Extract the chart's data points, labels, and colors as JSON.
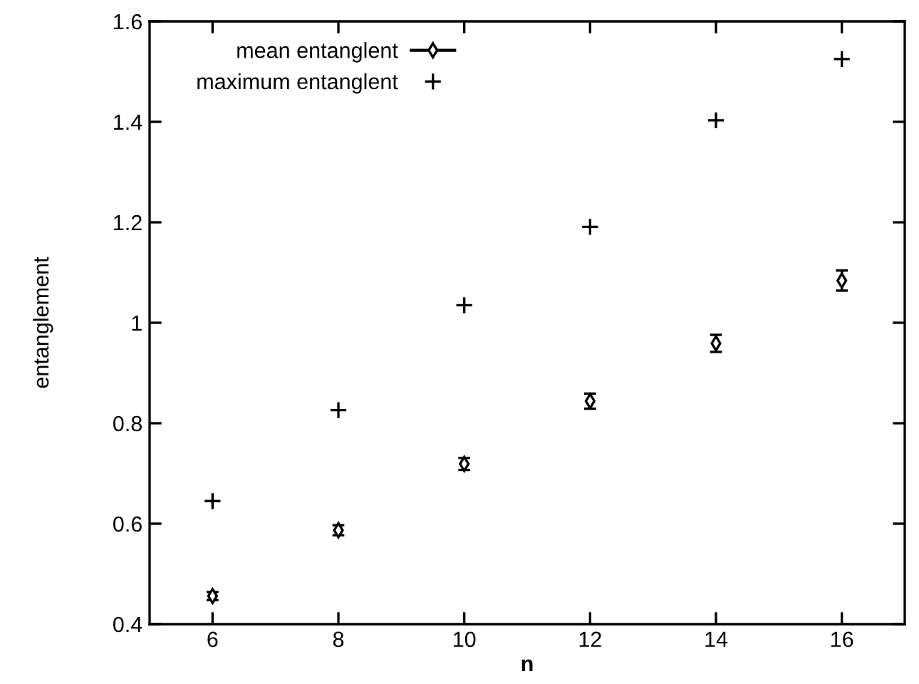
{
  "chart_data": {
    "type": "scatter",
    "xlabel": "n",
    "ylabel": "entanglement",
    "xlim": [
      5,
      17
    ],
    "ylim": [
      0.4,
      1.6
    ],
    "xticks": [
      6,
      8,
      10,
      12,
      14,
      16
    ],
    "yticks": [
      0.4,
      0.6,
      0.8,
      1,
      1.2,
      1.4,
      1.6
    ],
    "x": [
      6,
      8,
      10,
      12,
      14,
      16
    ],
    "grid": false,
    "legend": "top left",
    "series": [
      {
        "name": "mean entanglent",
        "color": "#000000",
        "marker": "diamond",
        "values": [
          0.456,
          0.587,
          0.719,
          0.844,
          0.959,
          1.084
        ],
        "errors": [
          0.008,
          0.01,
          0.012,
          0.015,
          0.017,
          0.02
        ]
      },
      {
        "name": "maximum entanglent",
        "color": "#000000",
        "marker": "cross",
        "values": [
          0.645,
          0.826,
          1.035,
          1.191,
          1.403,
          1.525
        ]
      }
    ]
  }
}
